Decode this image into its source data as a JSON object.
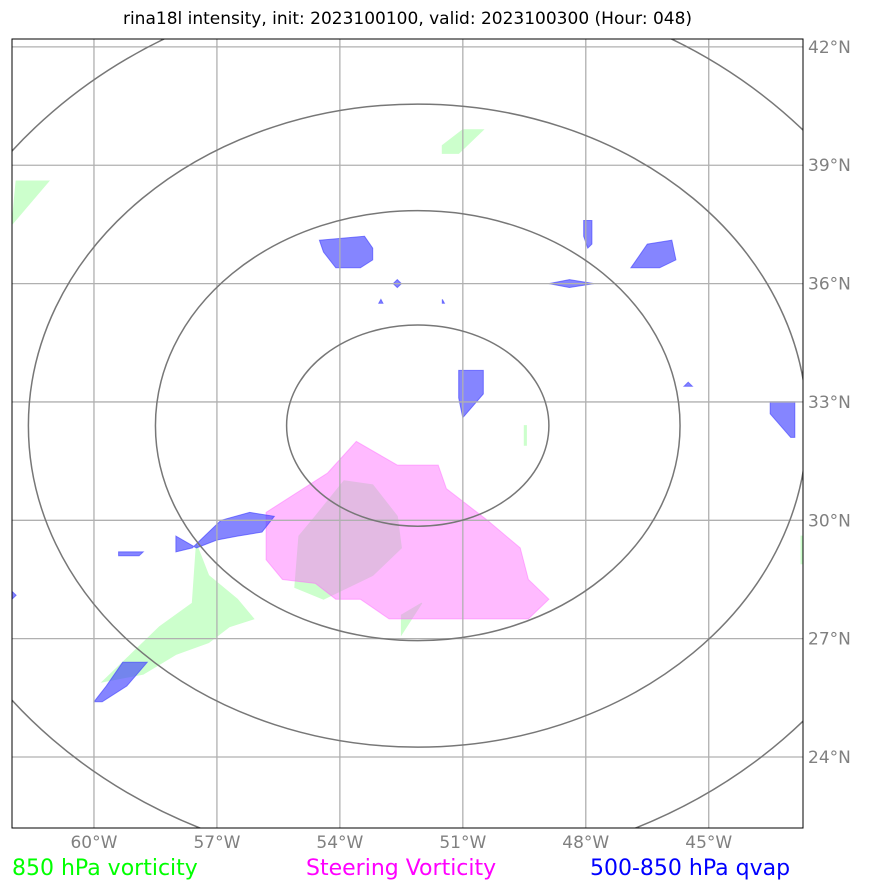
{
  "title": "rina18l intensity, init: 2023100100, valid: 2023100300 (Hour: 048)",
  "map": {
    "lon_range": [
      -62,
      -42.7
    ],
    "lat_range": [
      22.2,
      42.2
    ],
    "center": {
      "lon": -52.1,
      "lat": 32.4
    },
    "lon_ticks": [
      {
        "value": -60,
        "label": "60°W"
      },
      {
        "value": -57,
        "label": "57°W"
      },
      {
        "value": -54,
        "label": "54°W"
      },
      {
        "value": -51,
        "label": "51°W"
      },
      {
        "value": -48,
        "label": "48°W"
      },
      {
        "value": -45,
        "label": "45°W"
      }
    ],
    "lat_ticks": [
      {
        "value": 24,
        "label": "24°N"
      },
      {
        "value": 27,
        "label": "27°N"
      },
      {
        "value": 30,
        "label": "30°N"
      },
      {
        "value": 33,
        "label": "33°N"
      },
      {
        "value": 36,
        "label": "36°N"
      },
      {
        "value": 39,
        "label": "39°N"
      },
      {
        "value": 42,
        "label": "42°N"
      }
    ],
    "gridline_color": "#b0b0b0",
    "tick_label_color": "#808080",
    "range_ring_color": "#777777",
    "range_rings_deg": [
      {
        "rx": 3.2,
        "ry": 2.55
      },
      {
        "rx": 6.4,
        "ry": 5.45
      },
      {
        "rx": 9.5,
        "ry": 8.15
      },
      {
        "rx": 12.6,
        "ry": 11.25
      }
    ]
  },
  "fields": {
    "vorticity_850": {
      "color": "#ccffcc",
      "polygons": [
        [
          [
            -61.9,
            38.6
          ],
          [
            -61.1,
            38.6
          ],
          [
            -62,
            37.5
          ]
        ],
        [
          [
            -51.5,
            39.5
          ],
          [
            -51.0,
            39.9
          ],
          [
            -50.5,
            39.9
          ],
          [
            -51.1,
            39.3
          ],
          [
            -51.5,
            39.3
          ]
        ],
        [
          [
            -57.5,
            29.4
          ],
          [
            -57.2,
            28.6
          ],
          [
            -56.5,
            28.0
          ],
          [
            -56.1,
            27.5
          ],
          [
            -56.7,
            27.3
          ],
          [
            -57.2,
            26.9
          ],
          [
            -58.0,
            26.6
          ],
          [
            -58.8,
            26.1
          ],
          [
            -59.8,
            25.9
          ],
          [
            -59.1,
            26.6
          ],
          [
            -58.4,
            27.3
          ],
          [
            -57.6,
            27.9
          ]
        ],
        [
          [
            -55.0,
            29.6
          ],
          [
            -54.6,
            30.1
          ],
          [
            -53.9,
            31.0
          ],
          [
            -53.2,
            30.9
          ],
          [
            -52.6,
            30.1
          ],
          [
            -52.5,
            29.3
          ],
          [
            -53.2,
            28.6
          ],
          [
            -54.4,
            28.0
          ],
          [
            -55.1,
            28.3
          ]
        ],
        [
          [
            -52.5,
            27.6
          ],
          [
            -52.0,
            27.9
          ],
          [
            -52.5,
            27.1
          ]
        ],
        [
          [
            -49.5,
            32.4
          ],
          [
            -49.45,
            32.4
          ],
          [
            -49.45,
            31.9
          ],
          [
            -49.5,
            31.9
          ]
        ],
        [
          [
            -42.75,
            29.6
          ],
          [
            -42.7,
            29.6
          ],
          [
            -42.7,
            28.9
          ],
          [
            -42.75,
            28.9
          ]
        ]
      ]
    },
    "steering_vorticity": {
      "color": "#ff66ff",
      "opacity": 0.45,
      "polygons": [
        [
          [
            -55.8,
            30.2
          ],
          [
            -54.3,
            31.2
          ],
          [
            -53.6,
            32.0
          ],
          [
            -52.6,
            31.4
          ],
          [
            -51.6,
            31.4
          ],
          [
            -51.4,
            30.8
          ],
          [
            -50.4,
            30.0
          ],
          [
            -49.6,
            29.3
          ],
          [
            -49.4,
            28.5
          ],
          [
            -48.9,
            28.0
          ],
          [
            -49.4,
            27.5
          ],
          [
            -52.8,
            27.5
          ],
          [
            -53.5,
            28.0
          ],
          [
            -54.1,
            28.0
          ],
          [
            -54.6,
            28.4
          ],
          [
            -55.4,
            28.5
          ],
          [
            -55.8,
            29.0
          ]
        ]
      ]
    },
    "qvap_500_850": {
      "color": "#4444ff",
      "opacity": 0.65,
      "polygons": [
        [
          [
            -54.5,
            37.1
          ],
          [
            -53.4,
            37.2
          ],
          [
            -53.2,
            36.9
          ],
          [
            -53.2,
            36.6
          ],
          [
            -53.5,
            36.4
          ],
          [
            -54.1,
            36.4
          ],
          [
            -54.4,
            36.8
          ]
        ],
        [
          [
            -48.05,
            37.6
          ],
          [
            -47.85,
            37.6
          ],
          [
            -47.85,
            37.0
          ],
          [
            -47.95,
            36.9
          ],
          [
            -48.05,
            37.2
          ]
        ],
        [
          [
            -46.5,
            37.0
          ],
          [
            -45.9,
            37.1
          ],
          [
            -45.8,
            36.6
          ],
          [
            -46.2,
            36.4
          ],
          [
            -46.9,
            36.4
          ],
          [
            -46.7,
            36.7
          ]
        ],
        [
          [
            -48.4,
            36.1
          ],
          [
            -47.8,
            36.0
          ],
          [
            -48.4,
            35.9
          ],
          [
            -48.9,
            36.0
          ]
        ],
        [
          [
            -52.6,
            36.1
          ],
          [
            -52.5,
            36.0
          ],
          [
            -52.6,
            35.9
          ],
          [
            -52.7,
            36.0
          ]
        ],
        [
          [
            -53.0,
            35.6
          ],
          [
            -52.95,
            35.5
          ],
          [
            -53.05,
            35.5
          ]
        ],
        [
          [
            -51.5,
            35.6
          ],
          [
            -51.45,
            35.5
          ],
          [
            -51.5,
            35.5
          ]
        ],
        [
          [
            -51.1,
            33.8
          ],
          [
            -50.5,
            33.8
          ],
          [
            -50.5,
            33.2
          ],
          [
            -51.0,
            32.6
          ],
          [
            -51.1,
            33.1
          ]
        ],
        [
          [
            -45.5,
            33.5
          ],
          [
            -45.4,
            33.4
          ],
          [
            -45.6,
            33.4
          ]
        ],
        [
          [
            -43.5,
            33.0
          ],
          [
            -42.9,
            33.0
          ],
          [
            -42.9,
            32.1
          ],
          [
            -43.0,
            32.1
          ],
          [
            -43.5,
            32.7
          ]
        ],
        [
          [
            -56.9,
            30.0
          ],
          [
            -56.2,
            30.2
          ],
          [
            -55.6,
            30.1
          ],
          [
            -55.9,
            29.7
          ],
          [
            -56.5,
            29.6
          ],
          [
            -57.0,
            29.5
          ],
          [
            -57.5,
            29.3
          ],
          [
            -58.0,
            29.6
          ],
          [
            -58.0,
            29.2
          ],
          [
            -57.6,
            29.3
          ]
        ],
        [
          [
            -59.4,
            29.2
          ],
          [
            -58.8,
            29.2
          ],
          [
            -58.9,
            29.1
          ],
          [
            -59.4,
            29.1
          ]
        ],
        [
          [
            -62.0,
            28.2
          ],
          [
            -61.9,
            28.1
          ],
          [
            -62.0,
            28.0
          ]
        ],
        [
          [
            -59.3,
            26.4
          ],
          [
            -58.7,
            26.4
          ],
          [
            -59.2,
            25.8
          ],
          [
            -59.8,
            25.4
          ],
          [
            -60.0,
            25.4
          ],
          [
            -59.7,
            25.8
          ]
        ]
      ]
    }
  },
  "legend": {
    "vorticity_850": {
      "label": "850 hPa vorticity",
      "color": "#00ff00"
    },
    "steering_vorticity": {
      "label": "Steering Vorticity",
      "color": "#ff00ff"
    },
    "qvap_500_850": {
      "label": "500-850 hPa qvap",
      "color": "#0000ff"
    }
  }
}
